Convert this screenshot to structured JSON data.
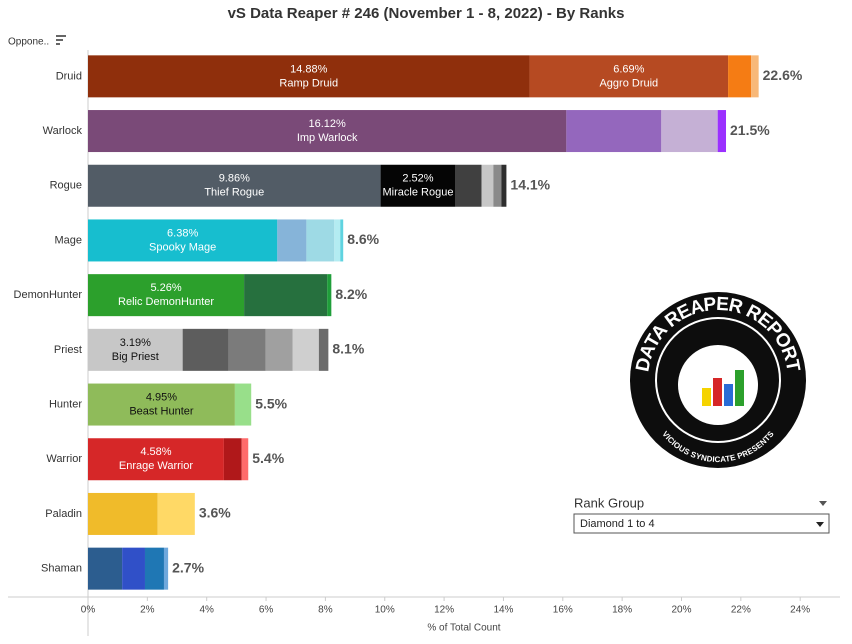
{
  "chart_data": {
    "type": "stacked-bar-horizontal",
    "title": "vS Data Reaper #  246 (November 1 - 8, 2022) - By Ranks",
    "sort_label": "Oppone..",
    "x_label": "% of Total Count",
    "xlim": [
      0,
      24.6
    ],
    "xticks": [
      {
        "value": 0,
        "label": "0%"
      },
      {
        "value": 2,
        "label": "2%"
      },
      {
        "value": 4,
        "label": "4%"
      },
      {
        "value": 6,
        "label": "6%"
      },
      {
        "value": 8,
        "label": "8%"
      },
      {
        "value": 10,
        "label": "10%"
      },
      {
        "value": 12,
        "label": "12%"
      },
      {
        "value": 14,
        "label": "14%"
      },
      {
        "value": 16,
        "label": "16%"
      },
      {
        "value": 18,
        "label": "18%"
      },
      {
        "value": 20,
        "label": "20%"
      },
      {
        "value": 22,
        "label": "22%"
      },
      {
        "value": 24,
        "label": "24%"
      }
    ],
    "rows": [
      {
        "name": "Druid",
        "total": 22.6,
        "total_label": "22.6%",
        "segments": [
          {
            "value": 14.88,
            "value_label": "14.88%",
            "archetype": "Ramp Druid",
            "color": "#8f2f0c"
          },
          {
            "value": 6.69,
            "value_label": "6.69%",
            "archetype": "Aggro Druid",
            "color": "#b64a22"
          },
          {
            "value": 0.78,
            "color": "#f57c14"
          },
          {
            "value": 0.25,
            "color": "#f8b878"
          }
        ]
      },
      {
        "name": "Warlock",
        "total": 21.5,
        "total_label": "21.5%",
        "segments": [
          {
            "value": 16.12,
            "value_label": "16.12%",
            "archetype": "Imp Warlock",
            "color": "#7a4a78"
          },
          {
            "value": 3.2,
            "color": "#9467bd"
          },
          {
            "value": 1.9,
            "color": "#c5b0d5"
          },
          {
            "value": 0.28,
            "color": "#9b30ff"
          }
        ]
      },
      {
        "name": "Rogue",
        "total": 14.1,
        "total_label": "14.1%",
        "segments": [
          {
            "value": 9.86,
            "value_label": "9.86%",
            "archetype": "Thief Rogue",
            "color": "#525c66"
          },
          {
            "value": 2.52,
            "value_label": "2.52%",
            "archetype": "Miracle Rogue",
            "color": "#050505"
          },
          {
            "value": 0.88,
            "color": "#404040"
          },
          {
            "value": 0.4,
            "color": "#c7c7c7"
          },
          {
            "value": 0.27,
            "color": "#8a8a8a"
          },
          {
            "value": 0.17,
            "color": "#2e2e2e"
          }
        ]
      },
      {
        "name": "Mage",
        "total": 8.6,
        "total_label": "8.6%",
        "segments": [
          {
            "value": 6.38,
            "value_label": "6.38%",
            "archetype": "Spooky Mage",
            "color": "#17becf"
          },
          {
            "value": 0.98,
            "color": "#86b4d9"
          },
          {
            "value": 0.94,
            "color": "#9edae5"
          },
          {
            "value": 0.2,
            "color": "#b3ecf2"
          },
          {
            "value": 0.1,
            "color": "#5fd3e0"
          }
        ]
      },
      {
        "name": "DemonHunter",
        "total": 8.2,
        "total_label": "8.2%",
        "segments": [
          {
            "value": 5.26,
            "value_label": "5.26%",
            "archetype": "Relic DemonHunter",
            "color": "#2ca02c"
          },
          {
            "value": 2.8,
            "color": "#26703e"
          },
          {
            "value": 0.14,
            "color": "#1f9e3a"
          }
        ]
      },
      {
        "name": "Priest",
        "total": 8.1,
        "total_label": "8.1%",
        "segments": [
          {
            "value": 3.19,
            "value_label": "3.19%",
            "archetype": "Big Priest",
            "color": "#c7c7c7"
          },
          {
            "value": 1.55,
            "color": "#5d5d5d"
          },
          {
            "value": 1.25,
            "color": "#7b7b7b"
          },
          {
            "value": 0.91,
            "color": "#a0a0a0"
          },
          {
            "value": 0.88,
            "color": "#cfcfcf"
          },
          {
            "value": 0.32,
            "color": "#6b6b6b"
          }
        ]
      },
      {
        "name": "Hunter",
        "total": 5.5,
        "total_label": "5.5%",
        "segments": [
          {
            "value": 4.95,
            "value_label": "4.95%",
            "archetype": "Beast Hunter",
            "color": "#8fbb5a"
          },
          {
            "value": 0.55,
            "color": "#98df8a"
          }
        ]
      },
      {
        "name": "Warrior",
        "total": 5.4,
        "total_label": "5.4%",
        "segments": [
          {
            "value": 4.58,
            "value_label": "4.58%",
            "archetype": "Enrage Warrior",
            "color": "#d62728"
          },
          {
            "value": 0.6,
            "color": "#b0181a"
          },
          {
            "value": 0.22,
            "color": "#ff6b6b"
          }
        ]
      },
      {
        "name": "Paladin",
        "total": 3.6,
        "total_label": "3.6%",
        "segments": [
          {
            "value": 2.35,
            "color": "#f0bb2a"
          },
          {
            "value": 1.25,
            "color": "#ffd966"
          }
        ]
      },
      {
        "name": "Shaman",
        "total": 2.7,
        "total_label": "2.7%",
        "segments": [
          {
            "value": 1.15,
            "color": "#2c5d8f"
          },
          {
            "value": 0.77,
            "color": "#3050c8"
          },
          {
            "value": 0.64,
            "color": "#1f77b4"
          },
          {
            "value": 0.14,
            "color": "#6fa8dc"
          }
        ]
      }
    ]
  },
  "filter": {
    "title": "Rank Group",
    "selected": "Diamond 1 to 4"
  },
  "logo": {
    "title": "DATA REAPER REPORT",
    "subtitle": "VICIOUS SYNDICATE PRESENTS"
  }
}
